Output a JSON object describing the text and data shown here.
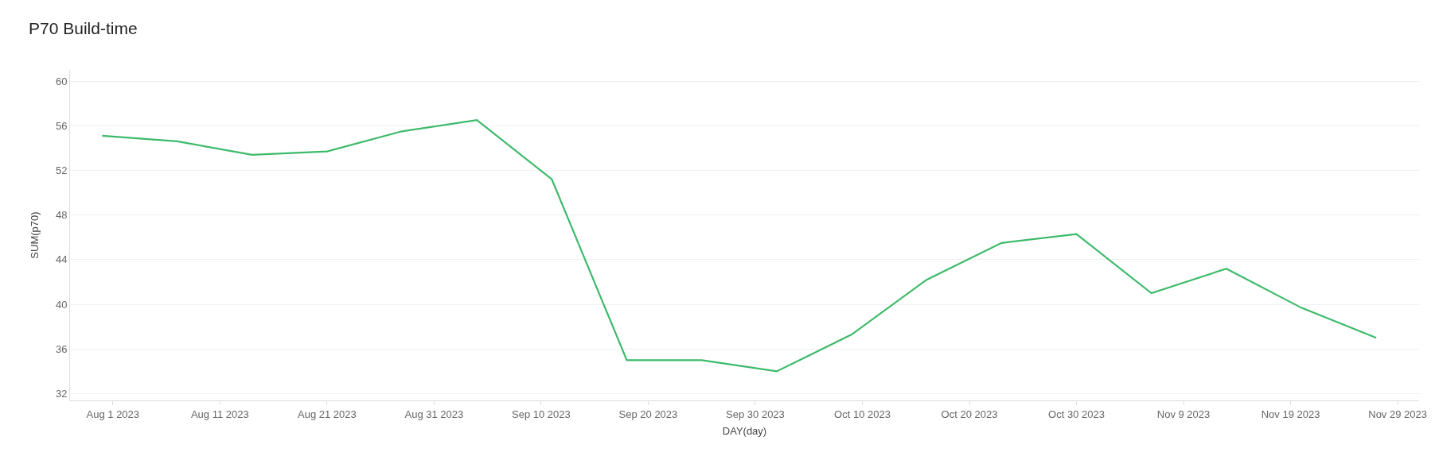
{
  "chart_data": {
    "type": "line",
    "title": "P70 Build-time",
    "xlabel": "DAY(day)",
    "ylabel": "SUM(p70)",
    "x": [
      "2023-07-31",
      "2023-08-07",
      "2023-08-14",
      "2023-08-21",
      "2023-08-28",
      "2023-09-04",
      "2023-09-11",
      "2023-09-18",
      "2023-09-25",
      "2023-10-02",
      "2023-10-09",
      "2023-10-16",
      "2023-10-23",
      "2023-10-30",
      "2023-11-06",
      "2023-11-13",
      "2023-11-20",
      "2023-11-27"
    ],
    "series": [
      {
        "color": "#3dba6a",
        "values": [
          55.1,
          54.6,
          53.4,
          53.7,
          55.5,
          56.5,
          51.2,
          35.0,
          35.0,
          34.0,
          37.3,
          42.2,
          45.5,
          46.3,
          41.0,
          43.2,
          39.7,
          37.0
        ]
      }
    ],
    "xlim": [
      "2023-07-28",
      "2023-12-01"
    ],
    "xticks": [
      {
        "value": "2023-08-01",
        "label": "Aug 1 2023"
      },
      {
        "value": "2023-08-11",
        "label": "Aug 11 2023"
      },
      {
        "value": "2023-08-21",
        "label": "Aug 21 2023"
      },
      {
        "value": "2023-08-31",
        "label": "Aug 31 2023"
      },
      {
        "value": "2023-09-10",
        "label": "Sep 10 2023"
      },
      {
        "value": "2023-09-20",
        "label": "Sep 20 2023"
      },
      {
        "value": "2023-09-30",
        "label": "Sep 30 2023"
      },
      {
        "value": "2023-10-10",
        "label": "Oct 10 2023"
      },
      {
        "value": "2023-10-20",
        "label": "Oct 20 2023"
      },
      {
        "value": "2023-10-30",
        "label": "Oct 30 2023"
      },
      {
        "value": "2023-11-09",
        "label": "Nov 9 2023"
      },
      {
        "value": "2023-11-19",
        "label": "Nov 19 2023"
      },
      {
        "value": "2023-11-29",
        "label": "Nov 29 2023"
      }
    ],
    "ylim": [
      31.4,
      61
    ],
    "yticks": [
      32,
      36,
      40,
      44,
      48,
      52,
      56,
      60
    ],
    "grid": "y",
    "legend": false,
    "marker": "none",
    "line_style": "solid"
  }
}
